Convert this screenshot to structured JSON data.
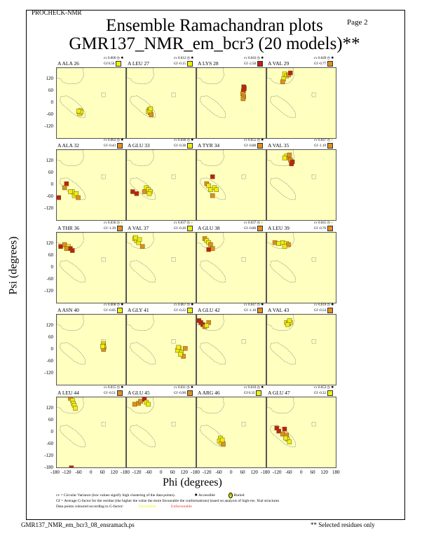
{
  "header": {
    "program": "PROCHECK-NMR",
    "page": "Page  2",
    "title_line1": "Ensemble Ramachandran plots",
    "title_line2": "GMR137_NMR_em_bcr3 (20 models)**"
  },
  "colors": {
    "favourable": "#f0f000",
    "intermediate": "#e09020",
    "unfavourable": "#c82810",
    "panel_bg": "#ffffc0",
    "Y": "#eeee10",
    "O": "#e0901c",
    "R": "#c02010"
  },
  "chart_data": {
    "type": "scatter",
    "xlabel": "Phi (degrees)",
    "ylabel": "Psi (degrees)",
    "xlim": [
      -180,
      180
    ],
    "ylim": [
      -180,
      180
    ],
    "x_ticks": [
      "-180",
      "-120",
      "-60",
      "0",
      "60",
      "120",
      "180"
    ],
    "y_ticks": [
      "120",
      "60",
      "0",
      "-60",
      "-120",
      "-180"
    ],
    "panels": [
      {
        "label": "A ALA 26",
        "cv": "cv 0.006",
        "gf": "Gf 0.56",
        "gf_color": "Y",
        "buried": false,
        "points": [
          [
            -65,
            -40,
            "Y"
          ],
          [
            -60,
            -45,
            "Y"
          ],
          [
            -58,
            -35,
            "Y"
          ],
          [
            -62,
            -50,
            "Y"
          ],
          [
            -55,
            -42,
            "Y"
          ],
          [
            -68,
            -38,
            "Y"
          ]
        ]
      },
      {
        "label": "A LEU 27",
        "cv": "cv 0.012",
        "gf": "Gf -0.15",
        "gf_color": "Y",
        "buried": false,
        "points": [
          [
            -65,
            -30,
            "Y"
          ],
          [
            -60,
            -45,
            "Y"
          ],
          [
            -70,
            -40,
            "Y"
          ],
          [
            -55,
            -55,
            "O"
          ],
          [
            -62,
            -35,
            "Y"
          ],
          [
            -58,
            -25,
            "Y"
          ]
        ]
      },
      {
        "label": "A LYS 28",
        "cv": "cv 0.043",
        "gf": "Gf -2.58",
        "gf_color": "R",
        "buried": false,
        "points": [
          [
            60,
            85,
            "R"
          ],
          [
            62,
            75,
            "R"
          ],
          [
            58,
            65,
            "R"
          ],
          [
            55,
            50,
            "O"
          ],
          [
            60,
            35,
            "O"
          ],
          [
            57,
            25,
            "O"
          ],
          [
            63,
            80,
            "R"
          ]
        ]
      },
      {
        "label": "A VAL 29",
        "cv": "cv 0.049",
        "gf": "Gf -0.77",
        "gf_color": "O",
        "buried": false,
        "points": [
          [
            -90,
            150,
            "Y"
          ],
          [
            -80,
            140,
            "Y"
          ],
          [
            -70,
            145,
            "O"
          ],
          [
            -95,
            125,
            "Y"
          ],
          [
            -100,
            110,
            "O"
          ],
          [
            -60,
            155,
            "R"
          ]
        ]
      },
      {
        "label": "A ALA 32",
        "cv": "cv 0.063",
        "gf": "Gf -0.43",
        "gf_color": "O",
        "buried": false,
        "points": [
          [
            -170,
            -60,
            "R"
          ],
          [
            -130,
            10,
            "R"
          ],
          [
            -140,
            -10,
            "O"
          ],
          [
            -100,
            -30,
            "Y"
          ],
          [
            -90,
            -50,
            "Y"
          ],
          [
            -80,
            -40,
            "Y"
          ],
          [
            -70,
            -60,
            "O"
          ],
          [
            -110,
            -30,
            "Y"
          ]
        ]
      },
      {
        "label": "A GLU 33",
        "cv": "cv 0.040",
        "gf": "Gf -0.38",
        "gf_color": "Y",
        "buried": false,
        "points": [
          [
            -150,
            -30,
            "R"
          ],
          [
            -130,
            -40,
            "R"
          ],
          [
            -80,
            -10,
            "Y"
          ],
          [
            -70,
            -20,
            "Y"
          ],
          [
            -60,
            -30,
            "Y"
          ],
          [
            -90,
            -30,
            "O"
          ],
          [
            -65,
            -40,
            "Y"
          ]
        ]
      },
      {
        "label": "A TYR 34",
        "cv": "cv 0.055",
        "gf": "Gf -0.88",
        "gf_color": "O",
        "buried": false,
        "points": [
          [
            -100,
            45,
            "R"
          ],
          [
            -130,
            10,
            "O"
          ],
          [
            -120,
            0,
            "Y"
          ],
          [
            -110,
            -20,
            "Y"
          ],
          [
            -90,
            -10,
            "Y"
          ],
          [
            -100,
            -50,
            "O"
          ],
          [
            -80,
            -20,
            "Y"
          ]
        ]
      },
      {
        "label": "A VAL 35",
        "cv": "cv 0.047",
        "gf": "Gf -1.19",
        "gf_color": "O",
        "buried": true,
        "points": [
          [
            -80,
            150,
            "Y"
          ],
          [
            -70,
            140,
            "O"
          ],
          [
            -60,
            130,
            "O"
          ],
          [
            -50,
            120,
            "R"
          ],
          [
            -55,
            110,
            "R"
          ],
          [
            -90,
            140,
            "Y"
          ],
          [
            -65,
            155,
            "O"
          ]
        ]
      },
      {
        "label": "A THR 36",
        "cv": "cv 0.036",
        "gf": "Gf -1.39",
        "gf_color": "O",
        "buried": true,
        "points": [
          [
            -160,
            110,
            "R"
          ],
          [
            -140,
            120,
            "O"
          ],
          [
            -120,
            110,
            "Y"
          ],
          [
            -110,
            100,
            "R"
          ],
          [
            -100,
            90,
            "R"
          ],
          [
            -130,
            100,
            "O"
          ]
        ]
      },
      {
        "label": "A VAL 37",
        "cv": "cv 0.037",
        "gf": "Gf -0.20",
        "gf_color": "Y",
        "buried": true,
        "points": [
          [
            -140,
            150,
            "Y"
          ],
          [
            -130,
            140,
            "Y"
          ],
          [
            -120,
            130,
            "Y"
          ],
          [
            -100,
            110,
            "O"
          ],
          [
            -135,
            155,
            "Y"
          ],
          [
            -115,
            145,
            "Y"
          ]
        ]
      },
      {
        "label": "A GLU 38",
        "cv": "cv 0.037",
        "gf": "Gf -0.80",
        "gf_color": "O",
        "buried": true,
        "points": [
          [
            -140,
            150,
            "O"
          ],
          [
            -130,
            140,
            "Y"
          ],
          [
            -120,
            130,
            "Y"
          ],
          [
            -110,
            120,
            "O"
          ],
          [
            -100,
            100,
            "O"
          ],
          [
            -120,
            95,
            "R"
          ]
        ]
      },
      {
        "label": "A LEU 39",
        "cv": "cv 0.041",
        "gf": "Gf -0.76",
        "gf_color": "O",
        "buried": true,
        "points": [
          [
            -140,
            130,
            "O"
          ],
          [
            -120,
            125,
            "Y"
          ],
          [
            -100,
            130,
            "Y"
          ],
          [
            -80,
            125,
            "Y"
          ],
          [
            -70,
            120,
            "O"
          ],
          [
            -90,
            110,
            "Y"
          ]
        ]
      },
      {
        "label": "A ASN 40",
        "cv": "cv 0.008",
        "gf": "Gf -0.05",
        "gf_color": "Y",
        "buried": false,
        "points": [
          [
            60,
            35,
            "Y"
          ],
          [
            58,
            25,
            "Y"
          ],
          [
            62,
            15,
            "Y"
          ],
          [
            60,
            5,
            "O"
          ],
          [
            55,
            20,
            "Y"
          ]
        ]
      },
      {
        "label": "A GLY 41",
        "cv": "cv 0.067",
        "gf": "Gf -0.22",
        "gf_color": "Y",
        "buried": false,
        "points": [
          [
            90,
            10,
            "Y"
          ],
          [
            80,
            0,
            "Y"
          ],
          [
            100,
            -10,
            "Y"
          ],
          [
            110,
            -30,
            "O"
          ],
          [
            95,
            -20,
            "Y"
          ],
          [
            120,
            10,
            "O"
          ],
          [
            85,
            15,
            "Y"
          ]
        ]
      },
      {
        "label": "A GLU 42",
        "cv": "cv 0.047",
        "gf": "Gf -1.10",
        "gf_color": "O",
        "buried": false,
        "points": [
          [
            -170,
            150,
            "R"
          ],
          [
            -160,
            140,
            "R"
          ],
          [
            -150,
            130,
            "R"
          ],
          [
            -140,
            120,
            "O"
          ],
          [
            -120,
            140,
            "O"
          ],
          [
            -130,
            125,
            "Y"
          ]
        ]
      },
      {
        "label": "A VAL 43",
        "cv": "cv 0.010",
        "gf": "Gf -0.54",
        "gf_color": "O",
        "buried": false,
        "points": [
          [
            -80,
            140,
            "Y"
          ],
          [
            -70,
            135,
            "O"
          ],
          [
            -60,
            140,
            "Y"
          ],
          [
            -65,
            150,
            "Y"
          ],
          [
            -75,
            130,
            "Y"
          ]
        ]
      },
      {
        "label": "A LEU 44",
        "cv": "cv 0.015",
        "gf": "Gf -0.51",
        "gf_color": "O",
        "buried": false,
        "points": [
          [
            -110,
            175,
            "O"
          ],
          [
            -100,
            165,
            "Y"
          ],
          [
            -95,
            150,
            "Y"
          ],
          [
            -90,
            140,
            "Y"
          ],
          [
            -85,
            125,
            "Y"
          ],
          [
            -105,
            -175,
            "R"
          ]
        ]
      },
      {
        "label": "A GLU 45",
        "cv": "cv 0.011",
        "gf": "Gf -0.90",
        "gf_color": "O",
        "buried": false,
        "points": [
          [
            -140,
            145,
            "O"
          ],
          [
            -120,
            150,
            "O"
          ],
          [
            -110,
            160,
            "O"
          ],
          [
            -90,
            170,
            "R"
          ],
          [
            -80,
            155,
            "Y"
          ],
          [
            -70,
            145,
            "Y"
          ]
        ]
      },
      {
        "label": "A ARG 46",
        "cv": "cv 0.010",
        "gf": "Gf 0.33",
        "gf_color": "Y",
        "buried": false,
        "points": [
          [
            -60,
            -25,
            "Y"
          ],
          [
            -65,
            -40,
            "Y"
          ],
          [
            -55,
            -50,
            "Y"
          ],
          [
            -45,
            -55,
            "O"
          ],
          [
            -50,
            -35,
            "Y"
          ]
        ]
      },
      {
        "label": "A GLU 47",
        "cv": "cv 0.053",
        "gf": "Gf -0.32",
        "gf_color": "Y",
        "buried": false,
        "points": [
          [
            -130,
            25,
            "R"
          ],
          [
            -120,
            10,
            "R"
          ],
          [
            -100,
            -5,
            "O"
          ],
          [
            -90,
            20,
            "R"
          ],
          [
            -80,
            -10,
            "O"
          ],
          [
            -75,
            -30,
            "Y"
          ],
          [
            -65,
            -45,
            "Y"
          ],
          [
            -85,
            -25,
            "Y"
          ]
        ]
      }
    ]
  },
  "legend": {
    "cv_text": "cv = Circular Variance (low values signify high clustering of the data points).",
    "accessible": "Accessible",
    "buried": "Buried",
    "gf_text": "Gf = Average G-factor for the residue (the higher the value the more favourable the conformations) based on analysis of high-res. Xtal structures",
    "colour_text": "Data points coloured according to G-factor:",
    "favourable": "Favourable",
    "unfavourable": "Unfavourable"
  },
  "footer": {
    "filename": "GMR137_NMR_em_bcr3_08_ensramach.ps",
    "note": "** Selected residues only"
  }
}
